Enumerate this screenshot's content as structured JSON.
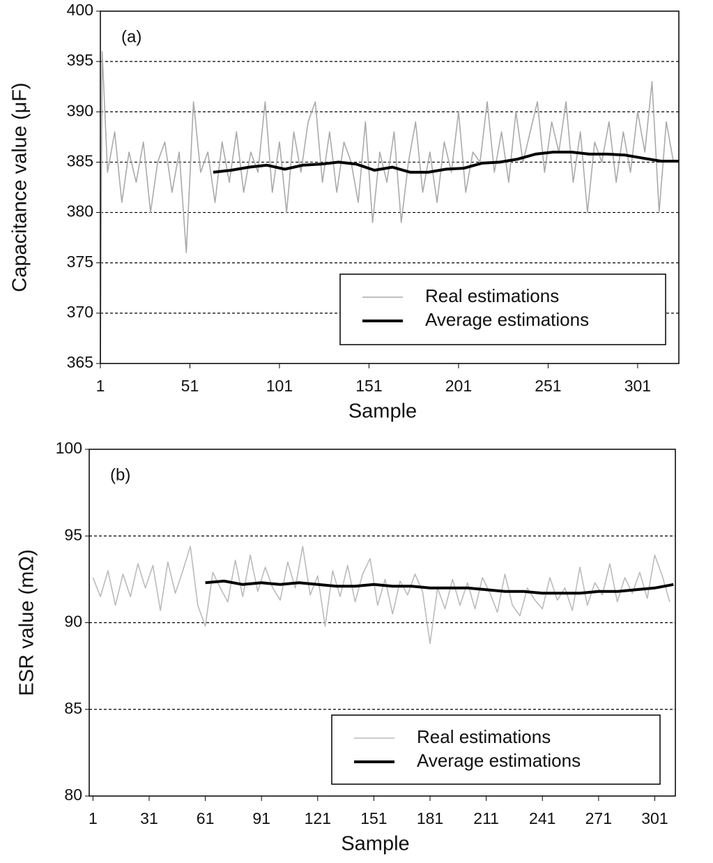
{
  "chart_data": [
    {
      "type": "line",
      "annotation": "(a)",
      "x_label": "Sample",
      "y_label": "Capacitance value (μF)",
      "xlim": [
        1,
        324
      ],
      "xticks": [
        1,
        51,
        101,
        151,
        201,
        251,
        301
      ],
      "ylim": [
        365,
        400
      ],
      "yticks": [
        365,
        370,
        375,
        380,
        385,
        390,
        395,
        400
      ],
      "grid": true,
      "legend": "lower right",
      "series": [
        {
          "name": "Real estimations",
          "color": "#aaaaaa",
          "x": [
            1,
            2,
            5,
            9,
            13,
            17,
            21,
            25,
            29,
            33,
            37,
            41,
            45,
            49,
            53,
            57,
            61,
            65,
            69,
            73,
            77,
            81,
            85,
            89,
            93,
            97,
            101,
            105,
            109,
            113,
            117,
            121,
            125,
            129,
            133,
            137,
            141,
            145,
            149,
            153,
            157,
            161,
            165,
            169,
            173,
            177,
            181,
            185,
            189,
            193,
            197,
            201,
            205,
            209,
            213,
            217,
            221,
            225,
            229,
            233,
            237,
            241,
            245,
            249,
            253,
            257,
            261,
            265,
            269,
            273,
            277,
            281,
            285,
            289,
            293,
            297,
            301,
            305,
            309,
            313,
            317,
            321
          ],
          "values": [
            365,
            396,
            384,
            388,
            381,
            386,
            383,
            387,
            380,
            385,
            387,
            382,
            386,
            376,
            391,
            384,
            386,
            381,
            387,
            383,
            388,
            382,
            386,
            384,
            391,
            382,
            387,
            380,
            388,
            384,
            389,
            391,
            383,
            388,
            382,
            387,
            385,
            381,
            389,
            379,
            386,
            383,
            388,
            379,
            385,
            389,
            382,
            386,
            381,
            387,
            384,
            390,
            382,
            386,
            385,
            391,
            384,
            388,
            383,
            390,
            385,
            388,
            391,
            384,
            389,
            386,
            391,
            383,
            388,
            380,
            387,
            385,
            389,
            383,
            388,
            384,
            390,
            386,
            393,
            380,
            389,
            385
          ]
        },
        {
          "name": "Average estimations",
          "color": "#000000",
          "x": [
            64,
            74,
            84,
            94,
            104,
            114,
            124,
            134,
            144,
            154,
            164,
            174,
            184,
            194,
            204,
            214,
            224,
            234,
            244,
            254,
            264,
            274,
            284,
            294,
            304,
            314,
            324
          ],
          "values": [
            384,
            384.2,
            384.5,
            384.7,
            384.3,
            384.7,
            384.8,
            385,
            384.8,
            384.2,
            384.5,
            384,
            384,
            384.3,
            384.4,
            384.9,
            385,
            385.3,
            385.8,
            386,
            386,
            385.8,
            385.8,
            385.7,
            385.4,
            385.1,
            385.1
          ]
        }
      ]
    },
    {
      "type": "line",
      "annotation": "(b)",
      "x_label": "Sample",
      "y_label": "ESR value (mΩ)",
      "xlim": [
        -1,
        312
      ],
      "xticks": [
        1,
        31,
        61,
        91,
        121,
        151,
        181,
        211,
        241,
        271,
        301
      ],
      "ylim": [
        80,
        100
      ],
      "yticks": [
        80,
        85,
        90,
        95,
        100
      ],
      "grid": true,
      "legend": "lower right",
      "series": [
        {
          "name": "Real estimations",
          "color": "#bbbbbb",
          "x": [
            1,
            5,
            9,
            13,
            17,
            21,
            25,
            29,
            33,
            37,
            41,
            45,
            49,
            53,
            57,
            61,
            65,
            69,
            73,
            77,
            81,
            85,
            89,
            93,
            97,
            101,
            105,
            109,
            113,
            117,
            121,
            125,
            129,
            133,
            137,
            141,
            145,
            149,
            153,
            157,
            161,
            165,
            169,
            173,
            177,
            181,
            185,
            189,
            193,
            197,
            201,
            205,
            209,
            213,
            217,
            221,
            225,
            229,
            233,
            237,
            241,
            245,
            249,
            253,
            257,
            261,
            265,
            269,
            273,
            277,
            281,
            285,
            289,
            293,
            297,
            301,
            305,
            309
          ],
          "values": [
            92.6,
            91.5,
            93,
            91,
            92.8,
            91.5,
            93.4,
            92,
            93.3,
            90.7,
            93.5,
            91.7,
            93,
            94.4,
            91,
            89.8,
            92.9,
            92,
            91.2,
            93.6,
            91.5,
            93.9,
            91.8,
            93.2,
            92,
            91.3,
            93.5,
            92,
            94.4,
            91.6,
            92.7,
            89.8,
            93,
            91.5,
            93.3,
            91.2,
            92.8,
            93.7,
            91,
            92.5,
            90.5,
            92.4,
            91.6,
            92.8,
            91.8,
            88.8,
            92,
            90.8,
            92.5,
            91,
            92.3,
            90.8,
            92.6,
            91.7,
            90.6,
            92.8,
            91,
            90.4,
            92,
            91.3,
            90.8,
            92.6,
            91.3,
            92,
            90.7,
            93.2,
            91,
            92.3,
            91.6,
            93.4,
            91.2,
            92.6,
            91.7,
            92.9,
            91.4,
            93.9,
            92.7,
            91.2
          ]
        },
        {
          "name": "Average estimations",
          "color": "#000000",
          "x": [
            61,
            71,
            81,
            91,
            101,
            111,
            121,
            131,
            141,
            151,
            161,
            171,
            181,
            191,
            201,
            211,
            221,
            231,
            241,
            251,
            261,
            271,
            281,
            291,
            301,
            311
          ],
          "values": [
            92.3,
            92.4,
            92.2,
            92.3,
            92.2,
            92.3,
            92.2,
            92.1,
            92.1,
            92.2,
            92.1,
            92.1,
            92,
            92,
            92,
            91.9,
            91.8,
            91.8,
            91.7,
            91.7,
            91.7,
            91.8,
            91.8,
            91.9,
            92,
            92.2
          ]
        }
      ]
    }
  ]
}
